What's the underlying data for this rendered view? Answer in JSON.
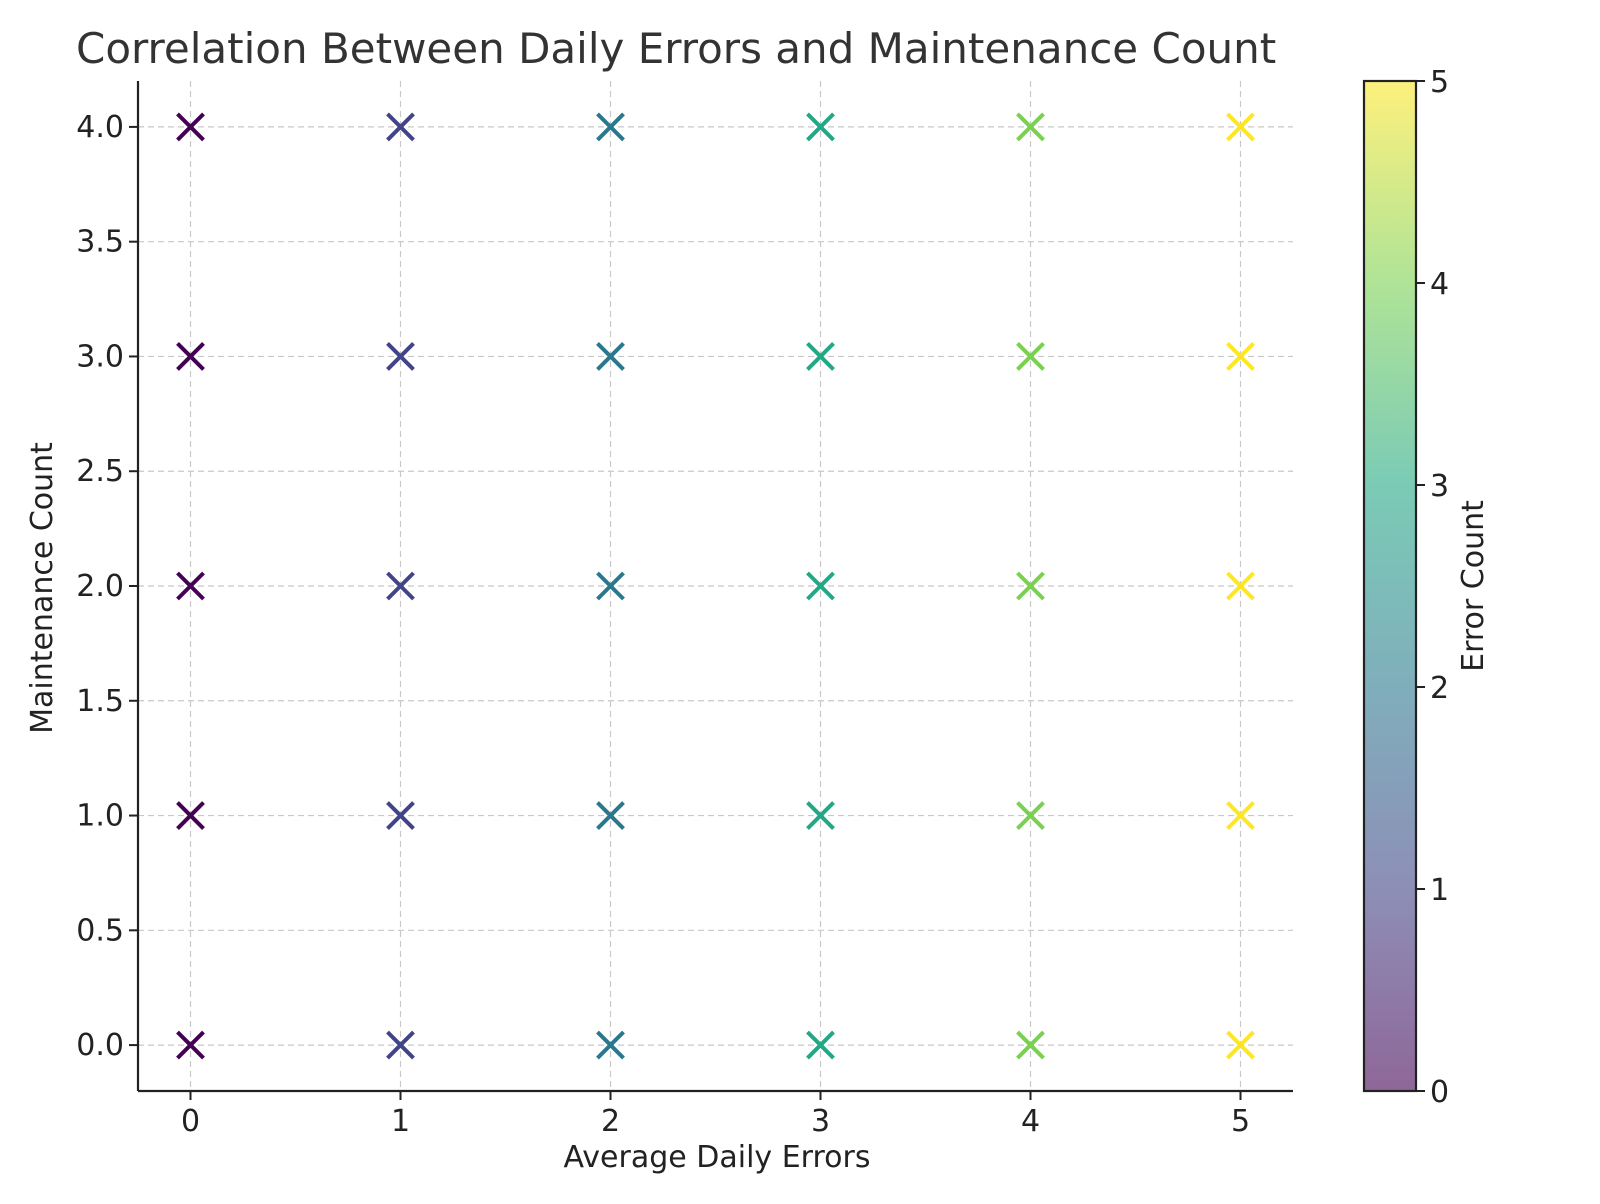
{
  "chart_data": {
    "type": "scatter",
    "title": "Correlation Between Daily Errors and Maintenance Count",
    "xlabel": "Average Daily Errors",
    "ylabel": "Maintenance Count",
    "xlim": [
      -0.25,
      5.25
    ],
    "ylim": [
      -0.2,
      4.2
    ],
    "x_ticks": [
      0,
      1,
      2,
      3,
      4,
      5
    ],
    "x_tick_labels": [
      "0",
      "1",
      "2",
      "3",
      "4",
      "5"
    ],
    "y_ticks": [
      0.0,
      0.5,
      1.0,
      1.5,
      2.0,
      2.5,
      3.0,
      3.5,
      4.0
    ],
    "y_tick_labels": [
      "0.0",
      "0.5",
      "1.0",
      "1.5",
      "2.0",
      "2.5",
      "3.0",
      "3.5",
      "4.0"
    ],
    "grid": true,
    "marker": "x",
    "colormap": "viridis",
    "colorbar": {
      "label": "Error Count",
      "range": [
        0,
        5
      ],
      "ticks": [
        0,
        1,
        2,
        3,
        4,
        5
      ],
      "tick_labels": [
        "0",
        "1",
        "2",
        "3",
        "4",
        "5"
      ]
    },
    "points": [
      {
        "x": 0,
        "y": 0,
        "c": 0
      },
      {
        "x": 0,
        "y": 1,
        "c": 0
      },
      {
        "x": 0,
        "y": 2,
        "c": 0
      },
      {
        "x": 0,
        "y": 3,
        "c": 0
      },
      {
        "x": 0,
        "y": 4,
        "c": 0
      },
      {
        "x": 1,
        "y": 0,
        "c": 1
      },
      {
        "x": 1,
        "y": 1,
        "c": 1
      },
      {
        "x": 1,
        "y": 2,
        "c": 1
      },
      {
        "x": 1,
        "y": 3,
        "c": 1
      },
      {
        "x": 1,
        "y": 4,
        "c": 1
      },
      {
        "x": 2,
        "y": 0,
        "c": 2
      },
      {
        "x": 2,
        "y": 1,
        "c": 2
      },
      {
        "x": 2,
        "y": 2,
        "c": 2
      },
      {
        "x": 2,
        "y": 3,
        "c": 2
      },
      {
        "x": 2,
        "y": 4,
        "c": 2
      },
      {
        "x": 3,
        "y": 0,
        "c": 3
      },
      {
        "x": 3,
        "y": 1,
        "c": 3
      },
      {
        "x": 3,
        "y": 2,
        "c": 3
      },
      {
        "x": 3,
        "y": 3,
        "c": 3
      },
      {
        "x": 3,
        "y": 4,
        "c": 3
      },
      {
        "x": 4,
        "y": 0,
        "c": 4
      },
      {
        "x": 4,
        "y": 1,
        "c": 4
      },
      {
        "x": 4,
        "y": 2,
        "c": 4
      },
      {
        "x": 4,
        "y": 3,
        "c": 4
      },
      {
        "x": 4,
        "y": 4,
        "c": 4
      },
      {
        "x": 5,
        "y": 0,
        "c": 5
      },
      {
        "x": 5,
        "y": 1,
        "c": 5
      },
      {
        "x": 5,
        "y": 2,
        "c": 5
      },
      {
        "x": 5,
        "y": 3,
        "c": 5
      },
      {
        "x": 5,
        "y": 4,
        "c": 5
      }
    ],
    "marker_colors": [
      "#440154",
      "#414487",
      "#2a788e",
      "#22a884",
      "#7ad151",
      "#fde725"
    ]
  }
}
